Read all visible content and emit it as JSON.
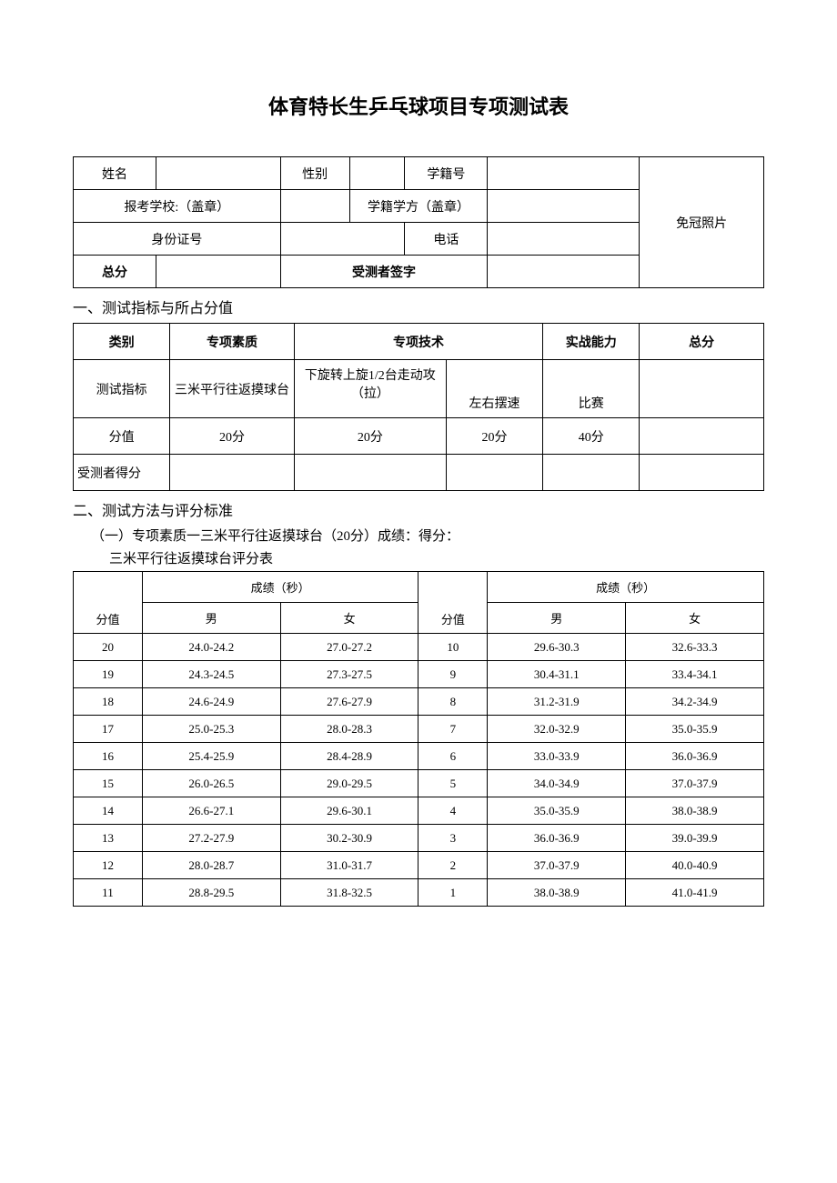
{
  "title": "体育特长生乒乓球项目专项测试表",
  "info": {
    "name_label": "姓名",
    "gender_label": "性别",
    "student_id_label": "学籍号",
    "school_label": "报考学校:（盖章）",
    "school_edu_label": "学籍学方（盖章）",
    "id_card_label": "身份证号",
    "phone_label": "电话",
    "total_label": "总分",
    "signature_label": "受测者签字",
    "photo_label": "免冠照片"
  },
  "section1": {
    "heading": "一、测试指标与所占分值",
    "col_category": "类别",
    "col_quality": "专项素质",
    "col_skill": "专项技术",
    "col_combat": "实战能力",
    "col_total": "总分",
    "row_indicator": "测试指标",
    "ind_quality": "三米平行往返摸球台",
    "ind_skill1": "下旋转上旋1/2台走动攻（拉）",
    "ind_skill2": "左右摆速",
    "ind_combat": "比赛",
    "row_score": "分值",
    "score_quality": "20分",
    "score_skill1": "20分",
    "score_skill2": "20分",
    "score_combat": "40分",
    "row_result": "受测者得分"
  },
  "section2": {
    "heading": "二、测试方法与评分标准",
    "sub1": "（一）专项素质一三米平行往返摸球台（20分）成绩：得分：",
    "sub2": "三米平行往返摸球台评分表",
    "hdr_result": "成绩（秒）",
    "hdr_score": "分值",
    "hdr_male": "男",
    "hdr_female": "女",
    "rows_left": [
      {
        "s": "20",
        "m": "24.0-24.2",
        "f": "27.0-27.2"
      },
      {
        "s": "19",
        "m": "24.3-24.5",
        "f": "27.3-27.5"
      },
      {
        "s": "18",
        "m": "24.6-24.9",
        "f": "27.6-27.9"
      },
      {
        "s": "17",
        "m": "25.0-25.3",
        "f": "28.0-28.3"
      },
      {
        "s": "16",
        "m": "25.4-25.9",
        "f": "28.4-28.9"
      },
      {
        "s": "15",
        "m": "26.0-26.5",
        "f": "29.0-29.5"
      },
      {
        "s": "14",
        "m": "26.6-27.1",
        "f": "29.6-30.1"
      },
      {
        "s": "13",
        "m": "27.2-27.9",
        "f": "30.2-30.9"
      },
      {
        "s": "12",
        "m": "28.0-28.7",
        "f": "31.0-31.7"
      },
      {
        "s": "11",
        "m": "28.8-29.5",
        "f": "31.8-32.5"
      }
    ],
    "rows_right": [
      {
        "s": "10",
        "m": "29.6-30.3",
        "f": "32.6-33.3"
      },
      {
        "s": "9",
        "m": "30.4-31.1",
        "f": "33.4-34.1"
      },
      {
        "s": "8",
        "m": "31.2-31.9",
        "f": "34.2-34.9"
      },
      {
        "s": "7",
        "m": "32.0-32.9",
        "f": "35.0-35.9"
      },
      {
        "s": "6",
        "m": "33.0-33.9",
        "f": "36.0-36.9"
      },
      {
        "s": "5",
        "m": "34.0-34.9",
        "f": "37.0-37.9"
      },
      {
        "s": "4",
        "m": "35.0-35.9",
        "f": "38.0-38.9"
      },
      {
        "s": "3",
        "m": "36.0-36.9",
        "f": "39.0-39.9"
      },
      {
        "s": "2",
        "m": "37.0-37.9",
        "f": "40.0-40.9"
      },
      {
        "s": "1",
        "m": "38.0-38.9",
        "f": "41.0-41.9"
      }
    ]
  }
}
